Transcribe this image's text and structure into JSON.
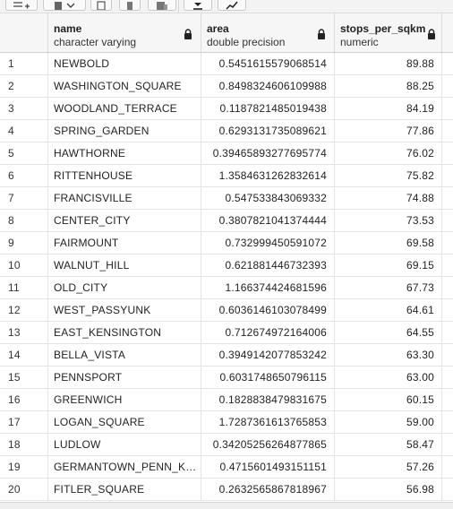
{
  "columns": [
    {
      "name": "name",
      "type": "character varying"
    },
    {
      "name": "area",
      "type": "double precision"
    },
    {
      "name": "stops_per_sqkm",
      "type": "numeric"
    }
  ],
  "rows": [
    {
      "n": "1",
      "name": "NEWBOLD",
      "area": "0.5451615579068514",
      "stops": "89.88"
    },
    {
      "n": "2",
      "name": "WASHINGTON_SQUARE",
      "area": "0.8498324606109988",
      "stops": "88.25"
    },
    {
      "n": "3",
      "name": "WOODLAND_TERRACE",
      "area": "0.1187821485019438",
      "stops": "84.19"
    },
    {
      "n": "4",
      "name": "SPRING_GARDEN",
      "area": "0.6293131735089621",
      "stops": "77.86"
    },
    {
      "n": "5",
      "name": "HAWTHORNE",
      "area": "0.39465893277695774",
      "stops": "76.02"
    },
    {
      "n": "6",
      "name": "RITTENHOUSE",
      "area": "1.3584631262832614",
      "stops": "75.82"
    },
    {
      "n": "7",
      "name": "FRANCISVILLE",
      "area": "0.547533843069332",
      "stops": "74.88"
    },
    {
      "n": "8",
      "name": "CENTER_CITY",
      "area": "0.3807821041374444",
      "stops": "73.53"
    },
    {
      "n": "9",
      "name": "FAIRMOUNT",
      "area": "0.732999450591072",
      "stops": "69.58"
    },
    {
      "n": "10",
      "name": "WALNUT_HILL",
      "area": "0.621881446732393",
      "stops": "69.15"
    },
    {
      "n": "11",
      "name": "OLD_CITY",
      "area": "1.166374424681596",
      "stops": "67.73"
    },
    {
      "n": "12",
      "name": "WEST_PASSYUNK",
      "area": "0.6036146103078499",
      "stops": "64.61"
    },
    {
      "n": "13",
      "name": "EAST_KENSINGTON",
      "area": "0.712674972164006",
      "stops": "64.55"
    },
    {
      "n": "14",
      "name": "BELLA_VISTA",
      "area": "0.3949142077853242",
      "stops": "63.30"
    },
    {
      "n": "15",
      "name": "PENNSPORT",
      "area": "0.6031748650796115",
      "stops": "63.00"
    },
    {
      "n": "16",
      "name": "GREENWICH",
      "area": "0.1828838479831675",
      "stops": "60.15"
    },
    {
      "n": "17",
      "name": "LOGAN_SQUARE",
      "area": "1.7287361613765853",
      "stops": "59.00"
    },
    {
      "n": "18",
      "name": "LUDLOW",
      "area": "0.34205256264877865",
      "stops": "58.47"
    },
    {
      "n": "19",
      "name": "GERMANTOWN_PENN_KN...",
      "area": "0.4715601493151151",
      "stops": "57.26"
    },
    {
      "n": "20",
      "name": "FITLER_SQUARE",
      "area": "0.2632565867818967",
      "stops": "56.98"
    }
  ],
  "toolbar_icons": [
    "add-row-icon",
    "copy-icon",
    "chevron-down-icon",
    "paste-icon",
    "delete-icon",
    "database-icon",
    "download-icon",
    "graph-icon"
  ]
}
